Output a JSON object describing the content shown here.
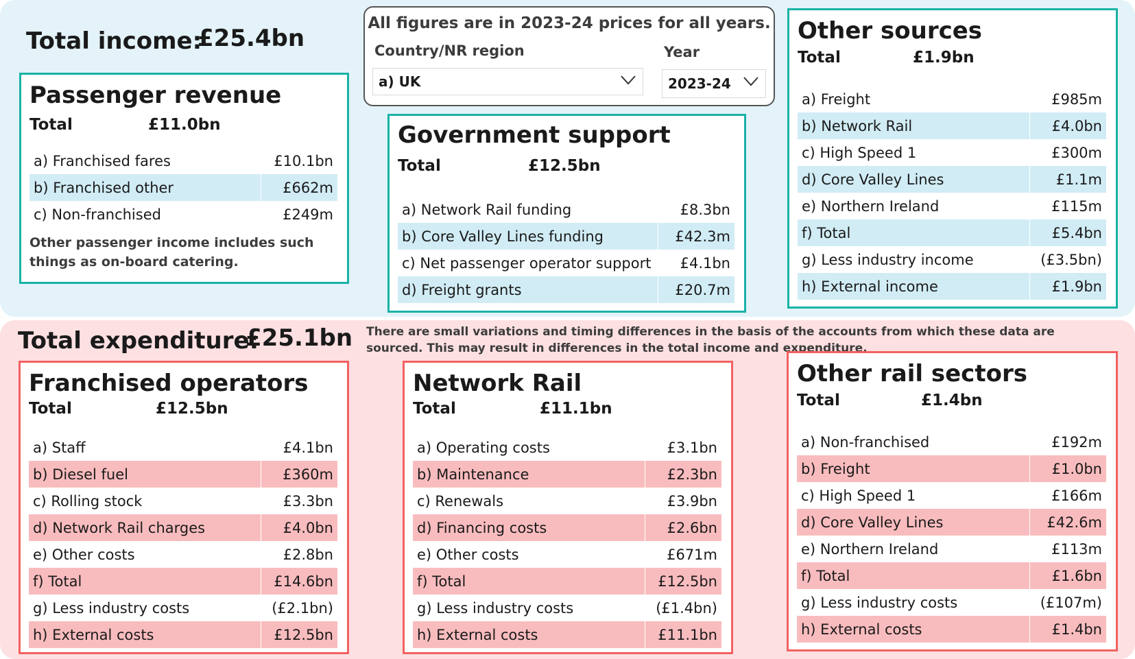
{
  "income": {
    "total_label": "Total income:",
    "total_value": "£25.4bn",
    "passenger": {
      "title": "Passenger revenue",
      "total_label": "Total",
      "total_value": "£11.0bn",
      "rows": [
        {
          "label": "a) Franchised fares",
          "value": "£10.1bn"
        },
        {
          "label": "b) Franchised other",
          "value": "£662m"
        },
        {
          "label": "c) Non-franchised",
          "value": "£249m"
        }
      ],
      "note": "Other passenger income includes such things as on-board catering."
    },
    "government": {
      "title": "Government support",
      "total_label": "Total",
      "total_value": "£12.5bn",
      "rows": [
        {
          "label": "a) Network Rail funding",
          "value": "£8.3bn"
        },
        {
          "label": "b) Core Valley Lines funding",
          "value": "£42.3m"
        },
        {
          "label": "c) Net passenger operator support",
          "value": "£4.1bn"
        },
        {
          "label": "d) Freight grants",
          "value": "£20.7m"
        }
      ]
    },
    "other": {
      "title": "Other sources",
      "total_label": "Total",
      "total_value": "£1.9bn",
      "rows": [
        {
          "label": "a) Freight",
          "value": "£985m"
        },
        {
          "label": "b) Network Rail",
          "value": "£4.0bn"
        },
        {
          "label": "c) High Speed 1",
          "value": "£300m"
        },
        {
          "label": "d) Core Valley Lines",
          "value": "£1.1m"
        },
        {
          "label": "e) Northern Ireland",
          "value": "£115m"
        },
        {
          "label": "f) Total",
          "value": "£5.4bn"
        },
        {
          "label": "g) Less industry income",
          "value": "(£3.5bn)"
        },
        {
          "label": "h) External income",
          "value": "£1.9bn"
        }
      ]
    }
  },
  "filters": {
    "caption": "All figures are in 2023-24 prices for all years.",
    "region_label": "Country/NR region",
    "region_value": "a) UK",
    "year_label": "Year",
    "year_value": "2023-24"
  },
  "expenditure": {
    "total_label": "Total expenditure:",
    "total_value": "£25.1bn",
    "note": "There are small variations and timing differences in the basis of the accounts from which these data are sourced. This may result in differences in the total income and expenditure.",
    "franchised": {
      "title": "Franchised operators",
      "total_label": "Total",
      "total_value": "£12.5bn",
      "rows": [
        {
          "label": "a) Staff",
          "value": "£4.1bn"
        },
        {
          "label": "b) Diesel fuel",
          "value": "£360m"
        },
        {
          "label": "c) Rolling stock",
          "value": "£3.3bn"
        },
        {
          "label": "d) Network Rail charges",
          "value": "£4.0bn"
        },
        {
          "label": "e) Other costs",
          "value": "£2.8bn"
        },
        {
          "label": "f) Total",
          "value": "£14.6bn"
        },
        {
          "label": "g) Less industry costs",
          "value": "(£2.1bn)"
        },
        {
          "label": "h) External costs",
          "value": "£12.5bn"
        }
      ]
    },
    "networkrail": {
      "title": "Network Rail",
      "total_label": "Total",
      "total_value": "£11.1bn",
      "rows": [
        {
          "label": "a) Operating costs",
          "value": "£3.1bn"
        },
        {
          "label": "b) Maintenance",
          "value": "£2.3bn"
        },
        {
          "label": "c) Renewals",
          "value": "£3.9bn"
        },
        {
          "label": "d) Financing costs",
          "value": "£2.6bn"
        },
        {
          "label": "e) Other costs",
          "value": "£671m"
        },
        {
          "label": "f) Total",
          "value": "£12.5bn"
        },
        {
          "label": "g) Less industry costs",
          "value": "(£1.4bn)"
        },
        {
          "label": "h) External costs",
          "value": "£11.1bn"
        }
      ]
    },
    "othersectors": {
      "title": "Other rail sectors",
      "total_label": "Total",
      "total_value": "£1.4bn",
      "rows": [
        {
          "label": "a) Non-franchised",
          "value": "£192m"
        },
        {
          "label": "b) Freight",
          "value": "£1.0bn"
        },
        {
          "label": "c) High Speed 1",
          "value": "£166m"
        },
        {
          "label": "d) Core Valley Lines",
          "value": "£42.6m"
        },
        {
          "label": "e) Northern Ireland",
          "value": "£113m"
        },
        {
          "label": "f) Total",
          "value": "£1.6bn"
        },
        {
          "label": "g) Less industry costs",
          "value": "(£107m)"
        },
        {
          "label": "h) External costs",
          "value": "£1.4bn"
        }
      ]
    }
  }
}
